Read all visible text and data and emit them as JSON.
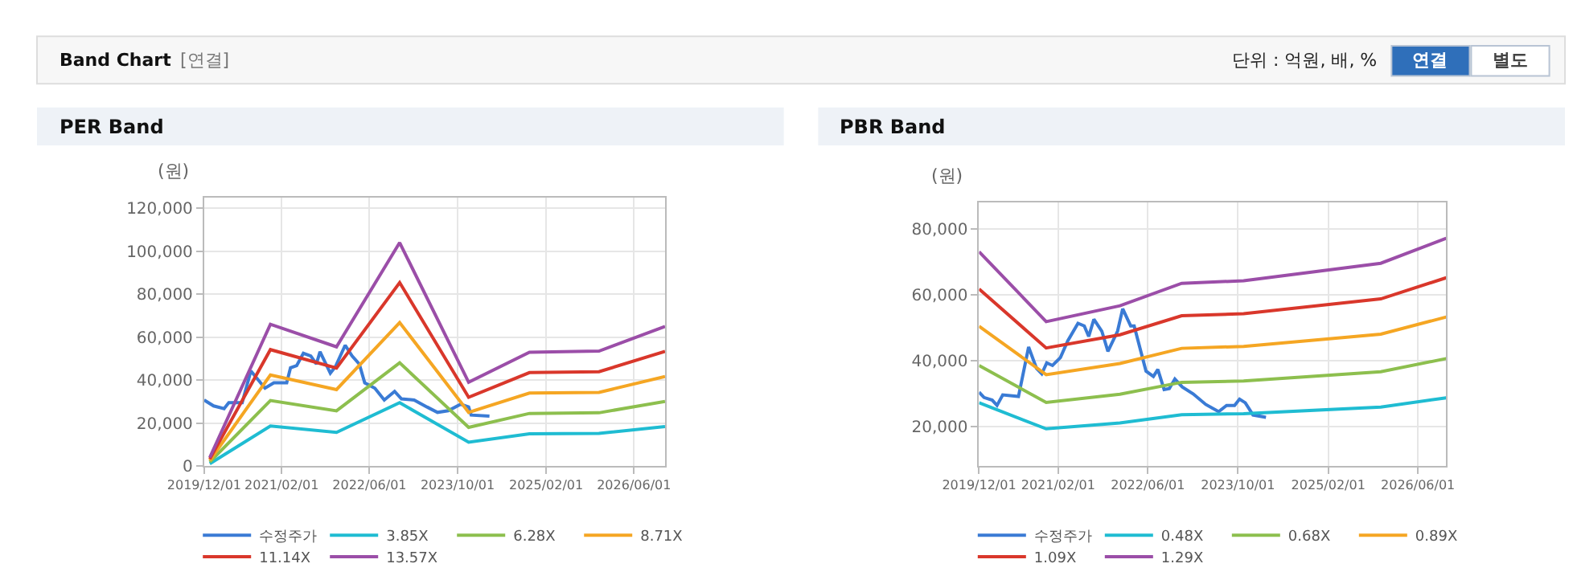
{
  "chart_data": [
    {
      "type": "line",
      "title": "PER Band",
      "ylabel": "(원)",
      "annotations": [
        "Band Chart",
        "[연결]",
        "단위 : 억원, 배, %",
        "연결",
        "별도"
      ],
      "xlim": [
        "2019-12-01",
        "2026-11-20"
      ],
      "ylim": [
        0,
        125000
      ],
      "xticks": [
        {
          "value": "2019-12-01",
          "label": "2019/12/01"
        },
        {
          "value": "2021-02-01",
          "label": "2021/02/01"
        },
        {
          "value": "2022-06-01",
          "label": "2022/06/01"
        },
        {
          "value": "2023-10-01",
          "label": "2023/10/01"
        },
        {
          "value": "2025-02-01",
          "label": "2025/02/01"
        },
        {
          "value": "2026-06-01",
          "label": "2026/06/01"
        }
      ],
      "yticks": [
        0,
        {
          "value": 20000,
          "label": "20,000"
        },
        {
          "value": 40000,
          "label": "40,000"
        },
        {
          "value": 60000,
          "label": "60,000"
        },
        {
          "value": 80000,
          "label": "80,000"
        },
        {
          "value": 100000,
          "label": "100,000"
        },
        {
          "value": 120000,
          "label": "120,000"
        }
      ],
      "grid": true,
      "legend": "bottom",
      "marker": "none",
      "line_style": "solid",
      "series": [
        {
          "name": "수정주가",
          "color": "#3a7bd5",
          "x": [
            "2019-12-01",
            "2020-01-22",
            "2020-03-20",
            "2020-04-15",
            "2020-06-28",
            "2020-08-15",
            "2020-11-01",
            "2020-12-20",
            "2021-03-01",
            "2021-03-22",
            "2021-04-25",
            "2021-06-01",
            "2021-07-12",
            "2021-08-12",
            "2021-09-01",
            "2021-10-28",
            "2021-11-25",
            "2022-01-18",
            "2022-02-25",
            "2022-04-06",
            "2022-05-06",
            "2022-07-01",
            "2022-08-22",
            "2022-10-18",
            "2022-11-25",
            "2023-02-03",
            "2023-04-15",
            "2023-06-12",
            "2023-08-10",
            "2023-10-18",
            "2023-12-01",
            "2023-12-15",
            "2024-03-25"
          ],
          "values": [
            30750,
            28000,
            26750,
            29500,
            29500,
            44250,
            36250,
            38750,
            38750,
            45750,
            46750,
            52500,
            51250,
            47500,
            53250,
            43250,
            46250,
            56250,
            51250,
            47500,
            38750,
            36250,
            30750,
            34750,
            31250,
            30750,
            27500,
            25000,
            25750,
            28750,
            27500,
            23750,
            23250
          ]
        },
        {
          "name": "3.85X",
          "color": "#1fbcd2",
          "x": [
            "2020-01-01",
            "2020-12-01",
            "2021-12-01",
            "2022-11-15",
            "2023-12-01",
            "2024-11-01",
            "2025-11-20",
            "2026-11-20"
          ],
          "values": [
            1100,
            18700,
            15700,
            29500,
            11100,
            15000,
            15200,
            18400
          ]
        },
        {
          "name": "6.28X",
          "color": "#8dbf4e",
          "x": [
            "2020-01-01",
            "2020-12-01",
            "2021-12-01",
            "2022-11-15",
            "2023-12-01",
            "2024-11-01",
            "2025-11-20",
            "2026-11-20"
          ],
          "values": [
            1900,
            30500,
            25700,
            48100,
            18000,
            24500,
            24800,
            30100
          ]
        },
        {
          "name": "8.71X",
          "color": "#f5a623",
          "x": [
            "2020-01-01",
            "2020-12-01",
            "2021-12-01",
            "2022-11-15",
            "2023-12-01",
            "2024-11-01",
            "2025-11-20",
            "2026-11-20"
          ],
          "values": [
            2600,
            42400,
            35600,
            66800,
            25000,
            34000,
            34300,
            41700
          ]
        },
        {
          "name": "11.14X",
          "color": "#d9372b",
          "x": [
            "2020-01-01",
            "2020-12-01",
            "2021-12-01",
            "2022-11-15",
            "2023-12-01",
            "2024-11-01",
            "2025-11-20",
            "2026-11-20"
          ],
          "values": [
            3300,
            54200,
            45600,
            85400,
            32000,
            43500,
            43900,
            53400
          ]
        },
        {
          "name": "13.57X",
          "color": "#9b4ea8",
          "x": [
            "2020-01-01",
            "2020-12-01",
            "2021-12-01",
            "2022-11-15",
            "2023-12-01",
            "2024-11-01",
            "2025-11-20",
            "2026-11-20"
          ],
          "values": [
            4000,
            66000,
            55500,
            104000,
            39000,
            53000,
            53500,
            65000
          ]
        }
      ]
    },
    {
      "type": "line",
      "title": "PBR Band",
      "ylabel": "(원)",
      "xlim": [
        "2019-12-01",
        "2026-11-01"
      ],
      "ylim": [
        8000,
        88000
      ],
      "xticks": [
        {
          "value": "2019-12-01",
          "label": "2019/12/01"
        },
        {
          "value": "2021-02-01",
          "label": "2021/02/01"
        },
        {
          "value": "2022-06-01",
          "label": "2022/06/01"
        },
        {
          "value": "2023-10-01",
          "label": "2023/10/01"
        },
        {
          "value": "2025-02-01",
          "label": "2025/02/01"
        },
        {
          "value": "2026-06-01",
          "label": "2026/06/01"
        }
      ],
      "yticks": [
        {
          "value": 20000,
          "label": "20,000"
        },
        {
          "value": 40000,
          "label": "40,000"
        },
        {
          "value": 60000,
          "label": "60,000"
        },
        {
          "value": 80000,
          "label": "80,000"
        }
      ],
      "grid": true,
      "legend": "bottom",
      "marker": "none",
      "line_style": "solid",
      "series": [
        {
          "name": "수정주가",
          "color": "#3a7bd5",
          "x": [
            "2019-12-01",
            "2019-12-28",
            "2020-02-10",
            "2020-03-07",
            "2020-04-07",
            "2020-07-01",
            "2020-08-25",
            "2020-10-07",
            "2020-11-04",
            "2020-12-01",
            "2021-01-01",
            "2021-02-13",
            "2021-03-25",
            "2021-05-19",
            "2021-06-22",
            "2021-07-16",
            "2021-08-13",
            "2021-09-25",
            "2021-10-28",
            "2021-12-19",
            "2022-01-16",
            "2022-02-28",
            "2022-03-19",
            "2022-05-22",
            "2022-07-01",
            "2022-07-25",
            "2022-08-28",
            "2022-09-25",
            "2022-10-25",
            "2022-12-04",
            "2023-02-01",
            "2023-04-10",
            "2023-06-19",
            "2023-08-01",
            "2023-09-13",
            "2023-10-10",
            "2023-11-10",
            "2023-12-22",
            "2024-03-01"
          ],
          "values": [
            30400,
            28800,
            28000,
            26400,
            29600,
            29100,
            44100,
            37600,
            36000,
            39300,
            38500,
            40900,
            46000,
            51300,
            50500,
            47300,
            52500,
            48900,
            42800,
            48900,
            55700,
            50500,
            50500,
            36800,
            35200,
            37300,
            31200,
            31500,
            34400,
            32000,
            29900,
            26700,
            24500,
            26400,
            26400,
            28300,
            27200,
            23500,
            22800
          ]
        },
        {
          "name": "0.48X",
          "color": "#1fbcd2",
          "x": [
            "2019-12-01",
            "2020-11-28",
            "2022-01-01",
            "2022-12-01",
            "2023-11-01",
            "2025-11-12",
            "2026-11-01"
          ],
          "values": [
            27200,
            19300,
            21100,
            23600,
            23900,
            25900,
            28700
          ]
        },
        {
          "name": "0.68X",
          "color": "#8dbf4e",
          "x": [
            "2019-12-01",
            "2020-11-28",
            "2022-01-01",
            "2022-12-01",
            "2023-11-01",
            "2025-11-12",
            "2026-11-01"
          ],
          "values": [
            38500,
            27300,
            29800,
            33400,
            33800,
            36600,
            40600
          ]
        },
        {
          "name": "0.89X",
          "color": "#f5a623",
          "x": [
            "2019-12-01",
            "2020-11-28",
            "2022-01-01",
            "2022-12-01",
            "2023-11-01",
            "2025-11-12",
            "2026-11-01"
          ],
          "values": [
            50400,
            35700,
            39100,
            43700,
            44300,
            48000,
            53200
          ]
        },
        {
          "name": "1.09X",
          "color": "#d9372b",
          "x": [
            "2019-12-01",
            "2020-11-28",
            "2022-01-01",
            "2022-12-01",
            "2023-11-01",
            "2025-11-12",
            "2026-11-01"
          ],
          "values": [
            61700,
            43800,
            47800,
            53600,
            54200,
            58700,
            65100
          ]
        },
        {
          "name": "1.29X",
          "color": "#9b4ea8",
          "x": [
            "2019-12-01",
            "2020-11-28",
            "2022-01-01",
            "2022-12-01",
            "2023-11-01",
            "2025-11-12",
            "2026-11-01"
          ],
          "values": [
            73000,
            51800,
            56600,
            63400,
            64200,
            69500,
            77100
          ]
        }
      ]
    }
  ]
}
